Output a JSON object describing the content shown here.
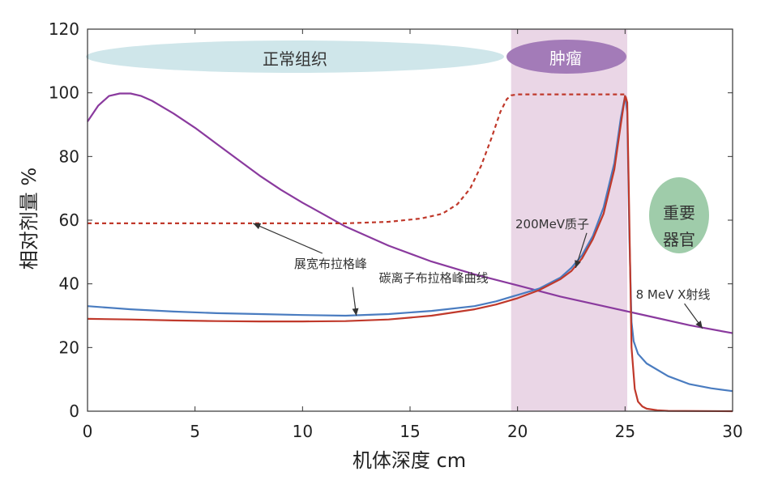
{
  "chart_data": {
    "type": "line",
    "xlabel": "机体深度 cm",
    "ylabel": "相对剂量 %",
    "xlim": [
      0,
      30
    ],
    "ylim": [
      0,
      120
    ],
    "xticks": [
      0,
      5,
      10,
      15,
      20,
      25,
      30
    ],
    "yticks": [
      0,
      20,
      40,
      60,
      80,
      100,
      120
    ],
    "grid": false,
    "tumor_region": {
      "label": "肿瘤",
      "x_start": 19.7,
      "x_end": 25.1,
      "fill": "#ead6e6",
      "badge_color": "#a37bb8"
    },
    "normal_tissue_label": {
      "label": "正常组织",
      "color": "#cfe6ea"
    },
    "organ_label": {
      "label": "重要器官",
      "color": "#9fccaa"
    },
    "series": [
      {
        "key": "xray",
        "color": "#8a3a9e",
        "dash": "solid",
        "x": [
          0,
          0.5,
          1,
          1.5,
          2,
          2.5,
          3,
          4,
          5,
          6,
          7,
          8,
          9,
          10,
          12,
          14,
          16,
          18,
          20,
          22,
          24,
          26,
          28,
          30
        ],
        "y": [
          91,
          96,
          99,
          99.8,
          99.8,
          99,
          97.5,
          93.5,
          89,
          84,
          79,
          74,
          69.5,
          65.5,
          58,
          52,
          47,
          43,
          39.5,
          36,
          33,
          30,
          27,
          24.5
        ]
      },
      {
        "key": "sobp",
        "color": "#c0392b",
        "dash": "5,4",
        "x": [
          0,
          2,
          4,
          6,
          8,
          10,
          12,
          14,
          15.5,
          16.5,
          17.2,
          17.8,
          18.3,
          18.8,
          19.2,
          19.5,
          19.7,
          20,
          21,
          22,
          23,
          24,
          24.8,
          25,
          25.1
        ],
        "y": [
          59,
          59,
          59,
          59,
          59,
          59,
          59,
          59.5,
          60.5,
          62,
          65,
          70,
          77,
          86,
          94,
          98,
          99.2,
          99.5,
          99.5,
          99.5,
          99.5,
          99.5,
          99.5,
          99.5,
          97
        ]
      },
      {
        "key": "carbon",
        "color": "#4a7cc0",
        "dash": "solid",
        "x": [
          0,
          2,
          4,
          6,
          8,
          10,
          12,
          14,
          16,
          18,
          19,
          20,
          21,
          22,
          22.5,
          23,
          23.5,
          24,
          24.5,
          24.8,
          25,
          25.1,
          25.2,
          25.3,
          25.4,
          25.6,
          26,
          27,
          28,
          29,
          30
        ],
        "y": [
          33,
          32,
          31.3,
          30.8,
          30.5,
          30.2,
          30,
          30.5,
          31.5,
          33,
          34.5,
          36.5,
          38.5,
          42,
          45,
          49,
          55,
          64,
          78,
          92,
          99,
          94,
          55,
          28,
          22,
          18,
          15,
          11,
          8.5,
          7.2,
          6.3
        ]
      },
      {
        "key": "proton",
        "color": "#c0392b",
        "dash": "solid",
        "x": [
          0,
          2,
          4,
          6,
          8,
          10,
          12,
          14,
          16,
          18,
          19,
          20,
          21,
          22,
          22.5,
          23,
          23.5,
          24,
          24.5,
          24.8,
          25,
          25.1,
          25.2,
          25.3,
          25.45,
          25.6,
          25.8,
          26,
          26.5,
          27,
          30
        ],
        "y": [
          29,
          28.8,
          28.5,
          28.3,
          28.2,
          28.2,
          28.3,
          28.8,
          30,
          32,
          33.5,
          35.5,
          38,
          41.5,
          44,
          48,
          54,
          62,
          76,
          90,
          99,
          97,
          60,
          20,
          7,
          3,
          1.5,
          0.8,
          0.3,
          0.1,
          0
        ]
      }
    ],
    "annotations": [
      {
        "text": "展宽布拉格峰",
        "target": [
          7.7,
          59
        ],
        "text_pos": [
          11.3,
          45
        ],
        "anchor": "middle"
      },
      {
        "text": "碳离子布拉格峰曲线",
        "target": [
          12.5,
          30
        ],
        "text_pos": [
          16.1,
          40.5
        ],
        "anchor": "middle"
      },
      {
        "text": "200MeV质子",
        "target": [
          22.7,
          45
        ],
        "text_pos": [
          19.9,
          57.5
        ],
        "anchor": "start"
      },
      {
        "text": "8 MeV X射线",
        "target": [
          28.6,
          26
        ],
        "text_pos": [
          25.5,
          35.3
        ],
        "anchor": "start"
      }
    ]
  }
}
